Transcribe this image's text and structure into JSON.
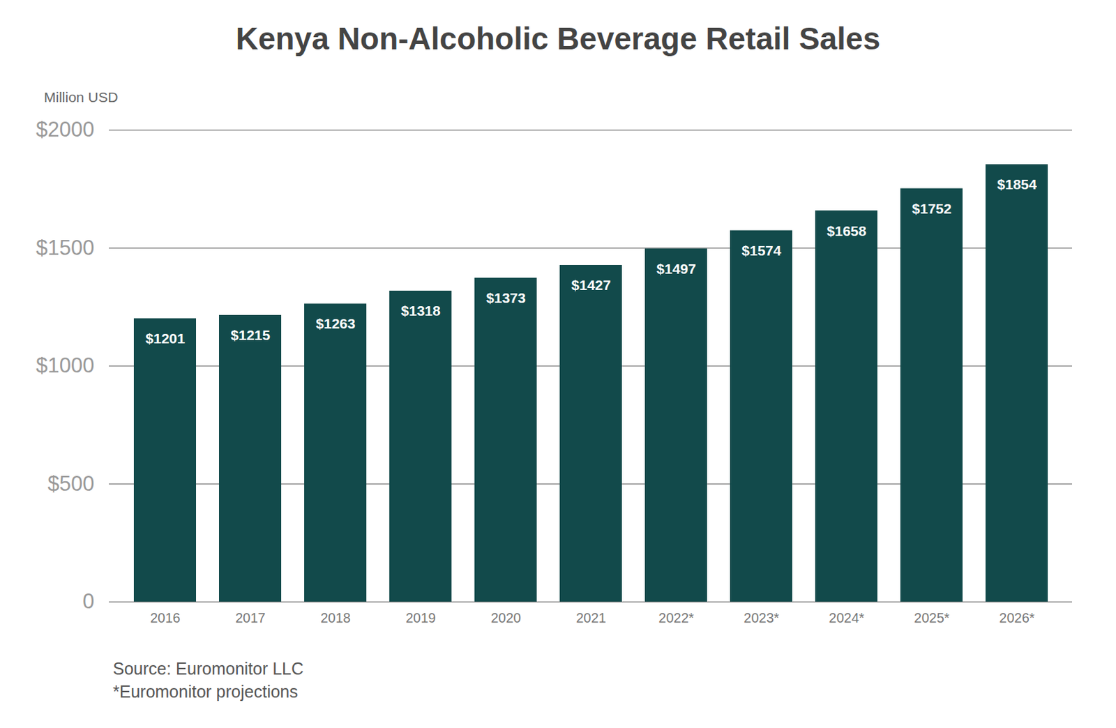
{
  "chart_data": {
    "type": "bar",
    "title": "Kenya Non-Alcoholic Beverage Retail Sales",
    "y_label": "Million USD",
    "categories": [
      "2016",
      "2017",
      "2018",
      "2019",
      "2020",
      "2021",
      "2022*",
      "2023*",
      "2024*",
      "2025*",
      "2026*"
    ],
    "values": [
      1201,
      1215,
      1263,
      1318,
      1373,
      1427,
      1497,
      1574,
      1658,
      1752,
      1854
    ],
    "value_labels": [
      "$1201",
      "$1215",
      "$1263",
      "$1318",
      "$1373",
      "$1427",
      "$1497",
      "$1574",
      "$1658",
      "$1752",
      "$1854"
    ],
    "data_labels": true,
    "color": "#124a4b",
    "ylim": [
      0,
      2000
    ],
    "yticks": [
      0,
      {
        "value": 500,
        "label": "$500"
      },
      {
        "value": 1000,
        "label": "$1000"
      },
      {
        "value": 1500,
        "label": "$1500"
      },
      {
        "value": 2000,
        "label": "$2000"
      }
    ],
    "grid": true,
    "caption": [
      "Source: Euromonitor LLC",
      "*Euromonitor projections"
    ]
  }
}
